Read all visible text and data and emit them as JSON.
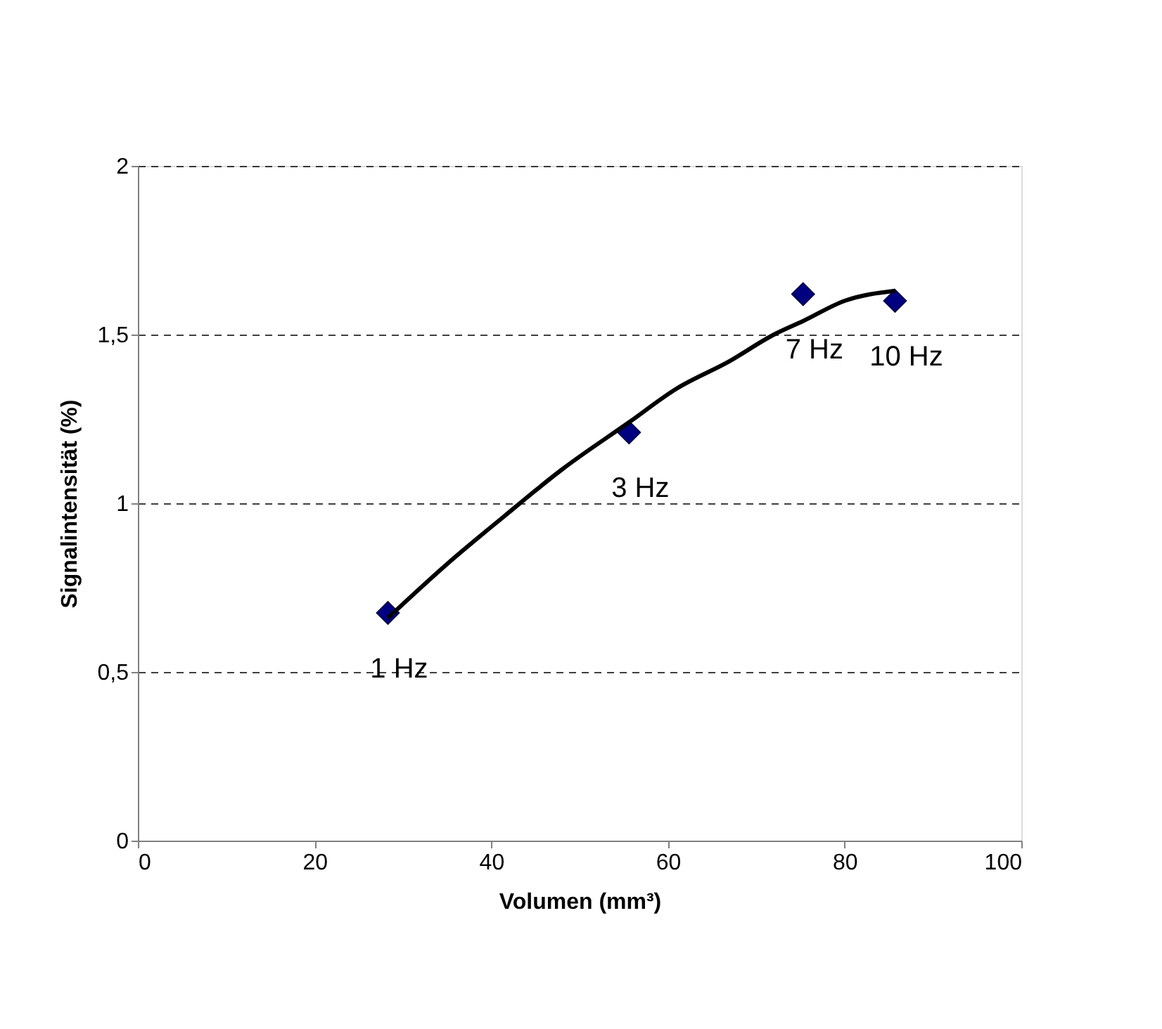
{
  "chart_data": {
    "type": "scatter",
    "xlabel": "Volumen (mm³)",
    "ylabel": "Signalintensität (%)",
    "xlim": [
      0,
      100
    ],
    "xticks": [
      0,
      20,
      40,
      60,
      80,
      100
    ],
    "ylim": [
      0,
      2
    ],
    "yticks": [
      0,
      {
        "value": 0.5,
        "label": "0,5"
      },
      1,
      {
        "value": 1.5,
        "label": "1,5"
      },
      2
    ],
    "grid": "y",
    "series": [
      {
        "color": "#000080",
        "marker": "diamond",
        "x": [
          28.3,
          55.6,
          75.3,
          85.7
        ],
        "values": [
          0.675,
          1.21,
          1.62,
          1.6
        ]
      },
      {
        "type": "line",
        "color": "#000000",
        "line_style": "solid",
        "x": [
          28.3,
          35,
          41.4,
          48,
          55.6,
          61,
          66.9,
          72,
          75.3,
          80,
          85.7
        ],
        "values": [
          0.66,
          0.82,
          0.96,
          1.1,
          1.24,
          1.34,
          1.42,
          1.5,
          1.54,
          1.6,
          1.63
        ]
      }
    ],
    "annotations": [
      {
        "text": "1 Hz",
        "x": 28.3,
        "y": 0.675
      },
      {
        "text": "3 Hz",
        "x": 55.6,
        "y": 1.21
      },
      {
        "text": "7 Hz",
        "x": 75.3,
        "y": 1.62
      },
      {
        "text": "10 Hz",
        "x": 85.7,
        "y": 1.6
      }
    ]
  }
}
